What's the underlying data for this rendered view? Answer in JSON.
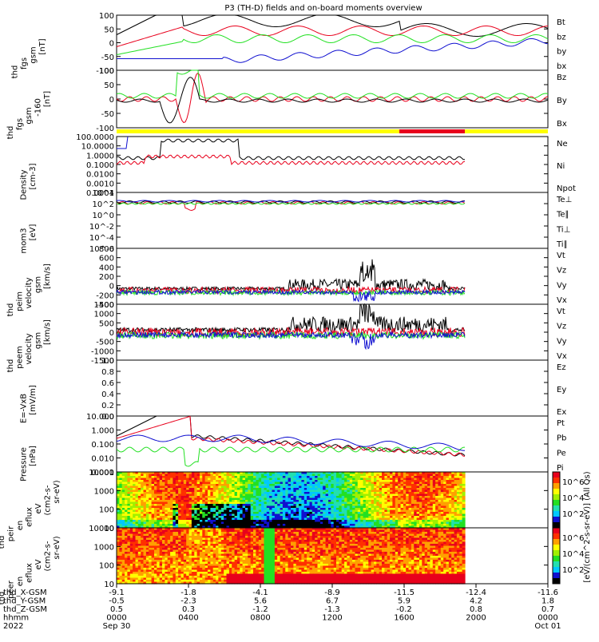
{
  "title": "P3 (TH-D) fields and on-board moments overview",
  "colors": {
    "black": "#000000",
    "red": "#e8001c",
    "green": "#22e022",
    "blue": "#1010d0",
    "yellow": "#ffff00"
  },
  "chart_data": {
    "type": "line",
    "panels": [
      {
        "ylabel": [
          "thd",
          "fgs",
          "gsm",
          "[nT]"
        ],
        "ticks": [
          "100",
          "50",
          "0",
          "-50",
          "-100"
        ],
        "ylim": [
          -100,
          100
        ],
        "legend": [
          {
            "name": "Bt",
            "color": "black"
          },
          {
            "name": "bz",
            "color": "red"
          },
          {
            "name": "by",
            "color": "green"
          },
          {
            "name": "bx",
            "color": "blue"
          }
        ]
      },
      {
        "ylabel": [
          "thd",
          "fgs",
          "gsm",
          "-160",
          "[nT]"
        ],
        "ticks": [
          "100",
          "50",
          "0",
          "-50",
          "-100"
        ],
        "ylim": [
          -120,
          120
        ],
        "legend": [
          {
            "name": "Bz",
            "color": "red"
          },
          {
            "name": "By",
            "color": "green"
          },
          {
            "name": "Bx",
            "color": "black"
          }
        ]
      },
      {
        "ylabel": [
          "Density",
          "[cm-3]"
        ],
        "ticks": [
          "100.0000",
          "10.0000",
          "1.0000",
          "0.1000",
          "0.0100",
          "0.0010",
          "0.0001"
        ],
        "log": true,
        "legend": [
          {
            "name": "Ne",
            "color": "red"
          },
          {
            "name": "Ni",
            "color": "black"
          },
          {
            "name": "Npot",
            "color": "blue"
          }
        ]
      },
      {
        "ylabel": [
          "mom3",
          "[eV]"
        ],
        "ticks": [
          "10^4",
          "10^2",
          "10^0",
          "10^-2",
          "10^-4",
          "10^-6"
        ],
        "log": true,
        "legend": [
          {
            "name": "Te⊥",
            "color": "red"
          },
          {
            "name": "Te∥",
            "color": "black"
          },
          {
            "name": "Ti⊥",
            "color": "blue"
          },
          {
            "name": "Ti∥",
            "color": "green"
          }
        ]
      },
      {
        "ylabel": [
          "thd",
          "peim",
          "velocity",
          "gsm",
          "[km/s]"
        ],
        "ticks": [
          "800",
          "600",
          "400",
          "200",
          "0",
          "-200",
          "-400"
        ],
        "ylim": [
          -400,
          800
        ],
        "legend": [
          {
            "name": "Vt",
            "color": "black"
          },
          {
            "name": "Vz",
            "color": "red"
          },
          {
            "name": "Vy",
            "color": "green"
          },
          {
            "name": "Vx",
            "color": "blue"
          }
        ]
      },
      {
        "ylabel": [
          "thd",
          "peem",
          "velocity",
          "gsm",
          "[km/s]"
        ],
        "ticks": [
          "1500",
          "1000",
          "500",
          "0",
          "-500",
          "-1000",
          "-1500"
        ],
        "ylim": [
          -1500,
          1500
        ],
        "legend": [
          {
            "name": "Vt",
            "color": "black"
          },
          {
            "name": "Vz",
            "color": "red"
          },
          {
            "name": "Vy",
            "color": "green"
          },
          {
            "name": "Vx",
            "color": "blue"
          }
        ]
      },
      {
        "ylabel": [
          "E=-VxB",
          "[mV/m]"
        ],
        "ticks": [
          "1.0",
          "0.8",
          "0.6",
          "0.4",
          "0.2",
          "0.0"
        ],
        "ylim": [
          0,
          1
        ],
        "legend": [
          {
            "name": "Ez",
            "color": "red"
          },
          {
            "name": "Ey",
            "color": "green"
          },
          {
            "name": "Ex",
            "color": "blue"
          }
        ]
      },
      {
        "ylabel": [
          "Pressure",
          "[nPa]"
        ],
        "ticks": [
          "10.000",
          "1.000",
          "0.100",
          "0.010",
          "0.001"
        ],
        "log": true,
        "legend": [
          {
            "name": "Pt",
            "color": "black"
          },
          {
            "name": "Pb",
            "color": "red"
          },
          {
            "name": "Pe",
            "color": "green"
          },
          {
            "name": "Pi",
            "color": "blue"
          }
        ]
      },
      {
        "ylabel": [
          "thd",
          "peir",
          "en",
          "eflux",
          "eV",
          "(cm2-s-",
          "sr-eV)"
        ],
        "ticks": [
          "10000",
          "1000",
          "100",
          "10"
        ],
        "spectrogram": true
      },
      {
        "ylabel": [
          "thd",
          "peer",
          "en",
          "eflux",
          "eV",
          "(cm2-s-",
          "sr-eV)"
        ],
        "ticks": [
          "10000",
          "1000",
          "100",
          "10"
        ],
        "spectrogram": true
      }
    ],
    "colorbar": {
      "label": "[eV/(cm^2-s-sr-eV)] (All Qs)",
      "ticks": [
        "10^6",
        "10^4",
        "10^2",
        "10^6",
        "10^4",
        "10^2"
      ]
    },
    "xaxis": {
      "rows": [
        {
          "label": "thd_X-GSM",
          "values": [
            "-9.1",
            "-1.8",
            "-4.1",
            "-8.9",
            "-11.5",
            "-12.4",
            "-11.6"
          ]
        },
        {
          "label": "thd_Y-GSM",
          "values": [
            "-0.5",
            "-2.3",
            "5.6",
            "6.7",
            "5.9",
            "4.2",
            "1.8"
          ]
        },
        {
          "label": "thd_Z-GSM",
          "values": [
            "0.5",
            "0.3",
            "-1.2",
            "-1.3",
            "-0.2",
            "0.8",
            "0.7"
          ]
        },
        {
          "label": "hhmm",
          "values": [
            "0000",
            "0400",
            "0800",
            "1200",
            "1600",
            "2000",
            "0000"
          ]
        },
        {
          "label": "2022",
          "values": [
            "Sep 30",
            "",
            "",
            "",
            "",
            "",
            "Oct 01"
          ]
        }
      ]
    }
  }
}
